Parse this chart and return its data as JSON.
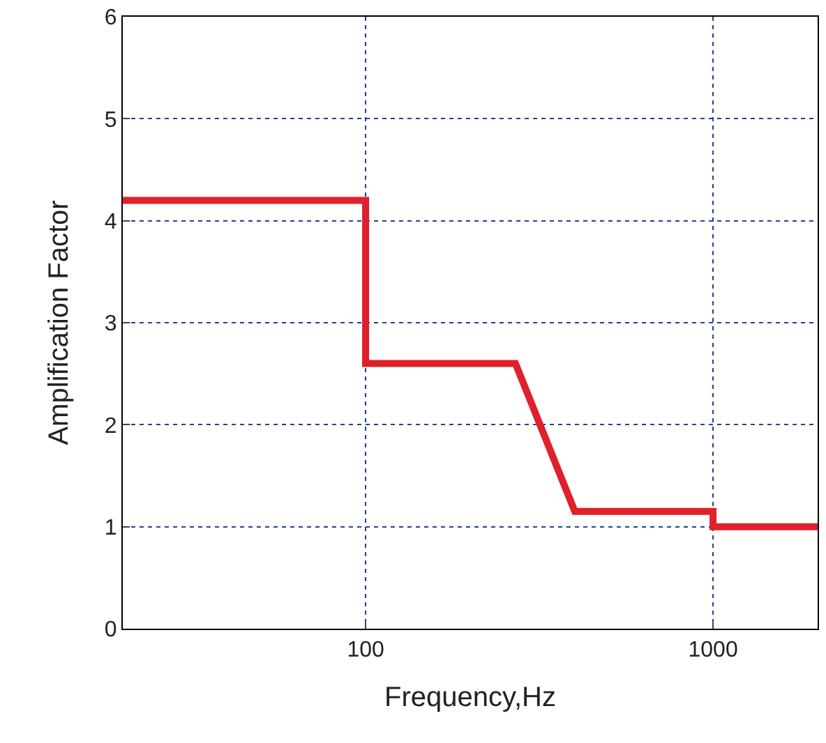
{
  "chart_data": {
    "type": "line",
    "xlabel": "Frequency,Hz",
    "ylabel": "Amplification Factor",
    "x": [
      20,
      100,
      100,
      270,
      400,
      1000,
      1000,
      2000
    ],
    "series": [
      {
        "color": "#e0202a",
        "values": [
          4.2,
          4.2,
          2.6,
          2.6,
          1.15,
          1.15,
          1.0,
          1.0
        ]
      }
    ],
    "log": "x",
    "xlim": [
      20,
      2000
    ],
    "xticks": [
      100,
      1000
    ],
    "ylim": [
      0,
      6
    ],
    "yticks": [
      0,
      1,
      2,
      3,
      4,
      5,
      6
    ],
    "grid": true,
    "marker": "none",
    "line_style": "solid"
  }
}
